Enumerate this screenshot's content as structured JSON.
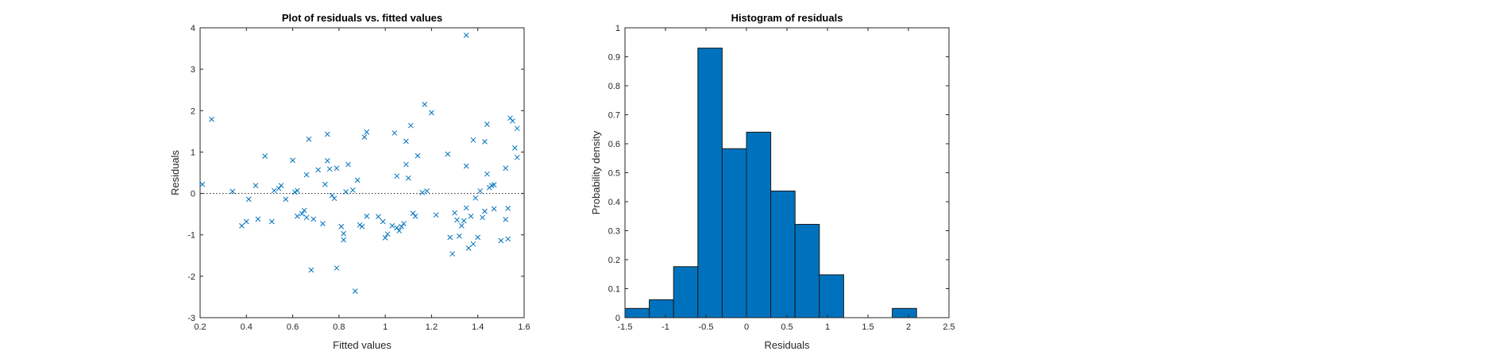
{
  "chart_data": [
    {
      "type": "scatter",
      "title": "Plot of residuals vs. fitted values",
      "xlabel": "Fitted values",
      "ylabel": "Residuals",
      "xlim": [
        0.2,
        1.6
      ],
      "ylim": [
        -3,
        4
      ],
      "xticks": [
        "0.2",
        "0.4",
        "0.6",
        "0.8",
        "1",
        "1.2",
        "1.4",
        "1.6"
      ],
      "yticks": [
        "-3",
        "-2",
        "-1",
        "0",
        "1",
        "2",
        "3",
        "4"
      ],
      "marker": "x",
      "zero_line": "dotted",
      "grid": false,
      "points": [
        [
          0.21,
          0.22
        ],
        [
          0.25,
          1.79
        ],
        [
          0.34,
          0.05
        ],
        [
          0.38,
          -0.78
        ],
        [
          0.4,
          -0.68
        ],
        [
          0.41,
          -0.14
        ],
        [
          0.44,
          0.19
        ],
        [
          0.45,
          -0.62
        ],
        [
          0.48,
          0.9
        ],
        [
          0.51,
          -0.68
        ],
        [
          0.52,
          0.07
        ],
        [
          0.54,
          0.12
        ],
        [
          0.55,
          0.19
        ],
        [
          0.57,
          -0.14
        ],
        [
          0.6,
          0.8
        ],
        [
          0.61,
          0.03
        ],
        [
          0.62,
          0.07
        ],
        [
          0.62,
          -0.55
        ],
        [
          0.64,
          -0.49
        ],
        [
          0.65,
          -0.41
        ],
        [
          0.66,
          0.45
        ],
        [
          0.66,
          -0.58
        ],
        [
          0.67,
          1.31
        ],
        [
          0.68,
          -1.85
        ],
        [
          0.69,
          -0.62
        ],
        [
          0.71,
          0.57
        ],
        [
          0.73,
          -0.73
        ],
        [
          0.74,
          0.22
        ],
        [
          0.75,
          0.79
        ],
        [
          0.75,
          1.43
        ],
        [
          0.76,
          0.59
        ],
        [
          0.77,
          -0.05
        ],
        [
          0.78,
          -0.12
        ],
        [
          0.79,
          0.61
        ],
        [
          0.79,
          -1.8
        ],
        [
          0.81,
          -0.8
        ],
        [
          0.82,
          -0.97
        ],
        [
          0.82,
          -1.12
        ],
        [
          0.83,
          0.04
        ],
        [
          0.84,
          0.7
        ],
        [
          0.86,
          0.08
        ],
        [
          0.87,
          -2.36
        ],
        [
          0.88,
          0.32
        ],
        [
          0.89,
          -0.76
        ],
        [
          0.9,
          -0.8
        ],
        [
          0.91,
          1.36
        ],
        [
          0.92,
          1.48
        ],
        [
          0.92,
          -0.55
        ],
        [
          0.97,
          -0.56
        ],
        [
          0.99,
          -0.68
        ],
        [
          1.0,
          -1.07
        ],
        [
          1.01,
          -0.98
        ],
        [
          1.03,
          -0.78
        ],
        [
          1.04,
          1.46
        ],
        [
          1.05,
          0.42
        ],
        [
          1.05,
          -0.83
        ],
        [
          1.06,
          -0.9
        ],
        [
          1.07,
          -0.8
        ],
        [
          1.08,
          -0.73
        ],
        [
          1.09,
          0.7
        ],
        [
          1.09,
          1.26
        ],
        [
          1.1,
          0.37
        ],
        [
          1.11,
          1.64
        ],
        [
          1.12,
          -0.48
        ],
        [
          1.13,
          -0.55
        ],
        [
          1.14,
          0.91
        ],
        [
          1.16,
          0.02
        ],
        [
          1.17,
          2.15
        ],
        [
          1.18,
          0.06
        ],
        [
          1.2,
          1.95
        ],
        [
          1.22,
          -0.52
        ],
        [
          1.27,
          0.95
        ],
        [
          1.28,
          -1.06
        ],
        [
          1.29,
          -1.46
        ],
        [
          1.3,
          -0.47
        ],
        [
          1.31,
          -0.64
        ],
        [
          1.32,
          -1.03
        ],
        [
          1.33,
          -0.78
        ],
        [
          1.34,
          -0.66
        ],
        [
          1.35,
          -0.35
        ],
        [
          1.35,
          0.66
        ],
        [
          1.35,
          3.82
        ],
        [
          1.36,
          -1.32
        ],
        [
          1.37,
          -0.55
        ],
        [
          1.38,
          -1.22
        ],
        [
          1.38,
          1.29
        ],
        [
          1.39,
          -0.11
        ],
        [
          1.4,
          -1.06
        ],
        [
          1.41,
          0.06
        ],
        [
          1.42,
          -0.58
        ],
        [
          1.43,
          -0.43
        ],
        [
          1.43,
          1.25
        ],
        [
          1.44,
          0.47
        ],
        [
          1.44,
          1.67
        ],
        [
          1.45,
          0.14
        ],
        [
          1.46,
          0.19
        ],
        [
          1.47,
          -0.37
        ],
        [
          1.47,
          0.21
        ],
        [
          1.5,
          -1.14
        ],
        [
          1.52,
          0.61
        ],
        [
          1.52,
          -0.63
        ],
        [
          1.53,
          -0.36
        ],
        [
          1.53,
          -1.1
        ],
        [
          1.54,
          1.82
        ],
        [
          1.55,
          1.75
        ],
        [
          1.56,
          1.1
        ],
        [
          1.57,
          0.87
        ],
        [
          1.57,
          1.57
        ]
      ]
    },
    {
      "type": "histogram",
      "title": "Histogram of residuals",
      "xlabel": "Residuals",
      "ylabel": "Probability density",
      "xlim": [
        -1.5,
        2.5
      ],
      "ylim": [
        0,
        1
      ],
      "xticks": [
        "-1.5",
        "-1",
        "-0.5",
        "0",
        "0.5",
        "1",
        "1.5",
        "2",
        "2.5"
      ],
      "yticks": [
        "0",
        "0.1",
        "0.2",
        "0.3",
        "0.4",
        "0.5",
        "0.6",
        "0.7",
        "0.8",
        "0.9",
        "1"
      ],
      "grid": false,
      "bin_edges": [
        -1.5,
        -1.2,
        -0.9,
        -0.6,
        -0.3,
        0.0,
        0.3,
        0.6,
        0.9,
        1.2,
        1.5,
        1.8,
        2.1
      ],
      "values": [
        0.032,
        0.062,
        0.176,
        0.93,
        0.583,
        0.64,
        0.437,
        0.322,
        0.148,
        0.0,
        0.0,
        0.032
      ],
      "bar_color": "#0072bd"
    }
  ]
}
